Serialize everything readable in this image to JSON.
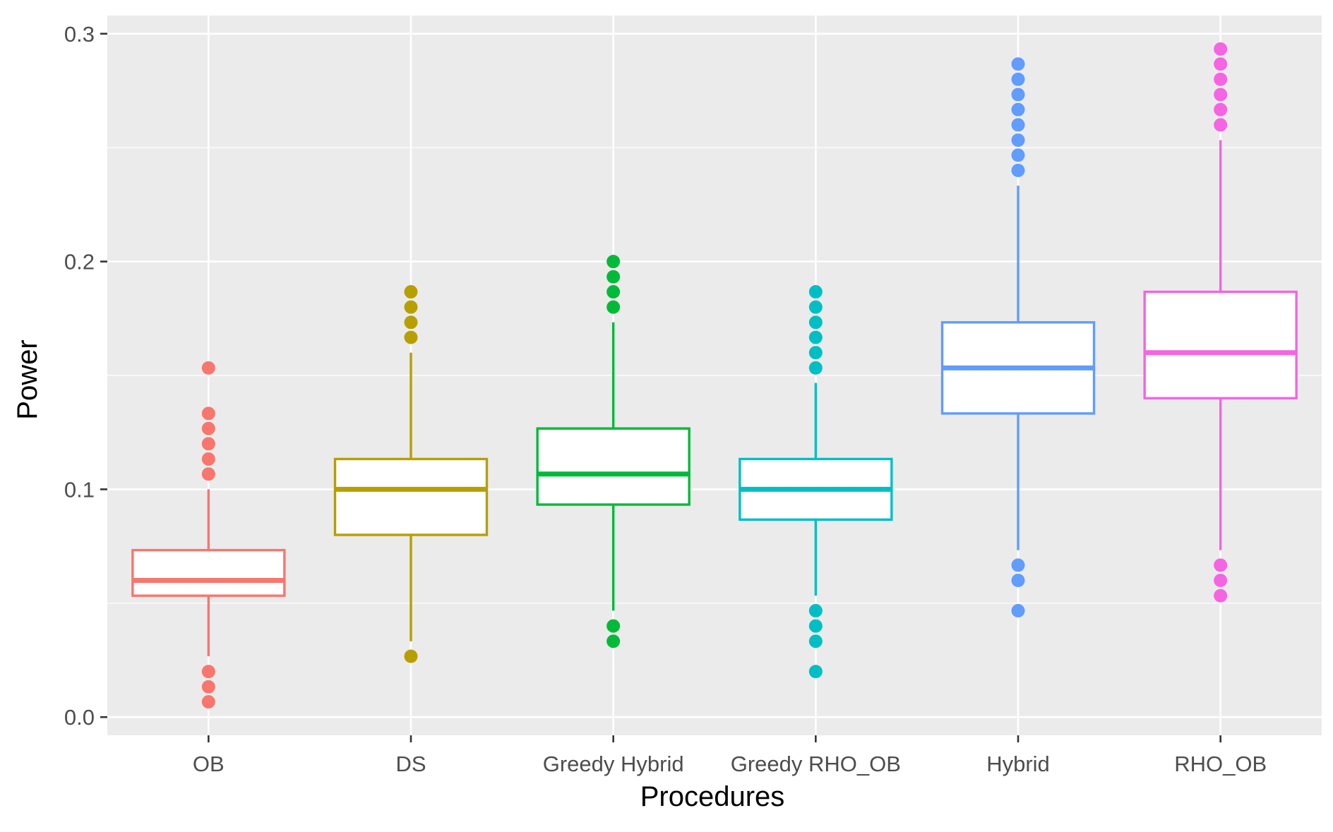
{
  "chart_data": {
    "type": "boxplot",
    "title": "",
    "xlabel": "Procedures",
    "ylabel": "Power",
    "ylim": [
      -0.008,
      0.308
    ],
    "yticks": [
      0.0,
      0.1,
      0.2,
      0.3
    ],
    "ytick_labels": [
      "0.0",
      "0.1",
      "0.2",
      "0.3"
    ],
    "grid": true,
    "legend": "none",
    "background": "#ebebeb",
    "categories": [
      "OB",
      "DS",
      "Greedy Hybrid",
      "Greedy RHO_OB",
      "Hybrid",
      "RHO_OB"
    ],
    "series": [
      {
        "category": "OB",
        "color": "#f8766d",
        "q1": 0.0533,
        "median": 0.06,
        "q3": 0.0733,
        "whisker_low": 0.0267,
        "whisker_high": 0.1,
        "outliers": [
          0.1533,
          0.1333,
          0.1267,
          0.12,
          0.1133,
          0.1067,
          0.02,
          0.0133,
          0.0067
        ]
      },
      {
        "category": "DS",
        "color": "#b79f00",
        "q1": 0.08,
        "median": 0.1,
        "q3": 0.1133,
        "whisker_low": 0.0333,
        "whisker_high": 0.16,
        "outliers": [
          0.1867,
          0.18,
          0.1733,
          0.1667,
          0.0267
        ]
      },
      {
        "category": "Greedy Hybrid",
        "color": "#00ba38",
        "q1": 0.0933,
        "median": 0.1067,
        "q3": 0.1267,
        "whisker_low": 0.0467,
        "whisker_high": 0.1733,
        "outliers": [
          0.2,
          0.1933,
          0.1867,
          0.18,
          0.04,
          0.0333
        ]
      },
      {
        "category": "Greedy RHO_OB",
        "color": "#00bfc4",
        "q1": 0.0867,
        "median": 0.1,
        "q3": 0.1133,
        "whisker_low": 0.0533,
        "whisker_high": 0.1467,
        "outliers": [
          0.1867,
          0.18,
          0.1733,
          0.1667,
          0.16,
          0.1533,
          0.0467,
          0.04,
          0.0333,
          0.02
        ]
      },
      {
        "category": "Hybrid",
        "color": "#619cff",
        "q1": 0.1333,
        "median": 0.1533,
        "q3": 0.1733,
        "whisker_low": 0.0733,
        "whisker_high": 0.2333,
        "outliers": [
          0.2867,
          0.28,
          0.2733,
          0.2667,
          0.26,
          0.2533,
          0.2467,
          0.24,
          0.0667,
          0.06,
          0.0467
        ]
      },
      {
        "category": "RHO_OB",
        "color": "#f564e3",
        "q1": 0.14,
        "median": 0.16,
        "q3": 0.1867,
        "whisker_low": 0.0733,
        "whisker_high": 0.2533,
        "outliers": [
          0.2933,
          0.2867,
          0.28,
          0.2733,
          0.2667,
          0.26,
          0.0667,
          0.06,
          0.0533
        ]
      }
    ]
  }
}
